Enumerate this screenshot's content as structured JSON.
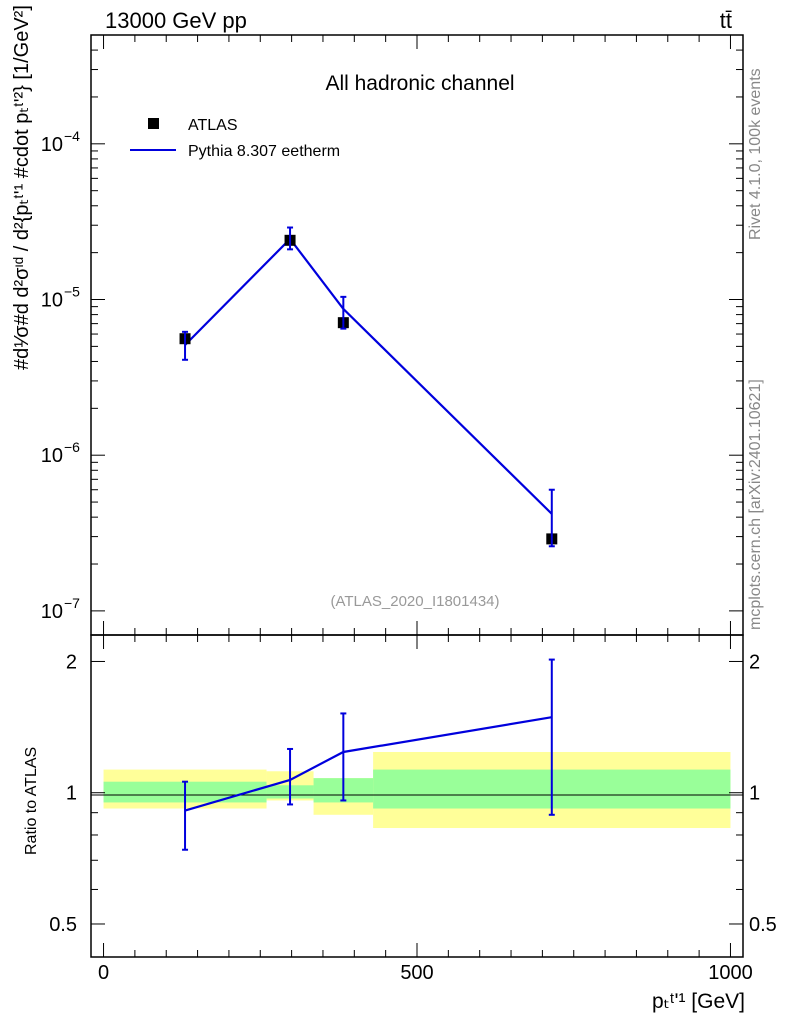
{
  "header": {
    "energy_label": "13000 GeV pp",
    "process_label": "tt̄"
  },
  "side_labels": {
    "rivet": "Rivet 4.1.0,  100k events",
    "mcplots": "mcplots.cern.ch [arXiv:2401.10621]"
  },
  "colors": {
    "mc_line": "#0000dd",
    "data_marker": "#000000",
    "band_inner": "#99ff99",
    "band_outer": "#ffff99"
  },
  "chart_data": [
    {
      "type": "line",
      "panel": "main",
      "title": "All hadronic channel",
      "ylabel": "#d¹⁄σ#d d²σᶦᵈ / d²{pₜᵗʹ¹ #cdot pₜᵗʹ²} [1/GeV²]",
      "yscale": "log",
      "ylim": [
        7e-08,
        0.0005
      ],
      "ytick_bases": [
        "10",
        "10",
        "10",
        "10"
      ],
      "ytick_exponents": [
        "−4",
        "−5",
        "−6",
        "−7"
      ],
      "ytick_values": [
        0.0001,
        1e-05,
        1e-06,
        1e-07
      ],
      "xlim": [
        -20,
        1020
      ],
      "watermark": "(ATLAS_2020_I1801434)",
      "legend": [
        "ATLAS",
        "Pythia 8.307 eetherm"
      ],
      "bin_edges": [
        0,
        260,
        335,
        430,
        1000
      ],
      "series": [
        {
          "name": "ATLAS",
          "kind": "data",
          "x": [
            130,
            297.5,
            382.5,
            715
          ],
          "y": [
            5.6e-06,
            2.4e-05,
            7.1e-06,
            2.9e-07
          ]
        },
        {
          "name": "Pythia 8.307 eetherm",
          "kind": "mc",
          "x": [
            130,
            297.5,
            382.5,
            715
          ],
          "y": [
            5.1e-06,
            2.45e-05,
            8.7e-06,
            4.2e-07
          ],
          "err_low": [
            4.1e-06,
            2.1e-05,
            6.5e-06,
            2.6e-07
          ],
          "err_high": [
            6.2e-06,
            2.9e-05,
            1.04e-05,
            6e-07
          ]
        }
      ]
    },
    {
      "type": "line",
      "panel": "ratio",
      "ylabel": "Ratio to ATLAS",
      "xlabel": "pₜᵗʹ¹ [GeV]",
      "yscale": "log",
      "ylim": [
        0.42,
        2.3
      ],
      "ytick_labels": [
        "2",
        "1",
        "0.5"
      ],
      "ytick_values": [
        2,
        1,
        0.5
      ],
      "xlim": [
        -20,
        1020
      ],
      "xtick_labels": [
        "0",
        "500",
        "1000"
      ],
      "xtick_values": [
        0,
        500,
        1000
      ],
      "bands": {
        "bin_edges": [
          0,
          260,
          335,
          430,
          1000
        ],
        "inner_low": [
          0.95,
          0.97,
          0.95,
          0.92,
          0.92
        ],
        "inner_high": [
          1.06,
          1.04,
          1.08,
          1.13,
          1.13
        ],
        "outer_low": [
          0.92,
          0.96,
          0.89,
          0.83,
          0.83
        ],
        "outer_high": [
          1.13,
          1.12,
          1.08,
          1.24,
          1.24
        ]
      },
      "series": [
        {
          "name": "Pythia 8.307 eetherm / ATLAS",
          "x": [
            130,
            297.5,
            382.5,
            715
          ],
          "y": [
            0.91,
            1.07,
            1.24,
            1.49
          ],
          "err_low": [
            0.74,
            0.94,
            0.96,
            0.89
          ],
          "err_high": [
            1.06,
            1.26,
            1.52,
            2.02
          ]
        }
      ]
    }
  ]
}
